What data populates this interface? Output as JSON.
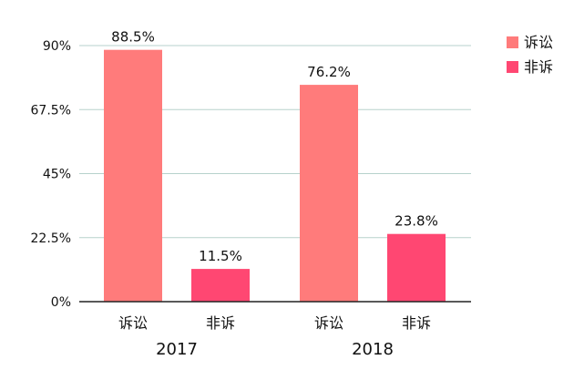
{
  "chart_data": {
    "type": "bar",
    "groups": [
      "2017",
      "2018"
    ],
    "categories": [
      "诉讼",
      "非诉"
    ],
    "series": [
      {
        "name": "诉讼",
        "values": [
          88.5,
          76.2
        ],
        "color": "#FF7B7B"
      },
      {
        "name": "非诉",
        "values": [
          11.5,
          23.8
        ],
        "color": "#FF4772"
      }
    ],
    "data_labels": {
      "2017": [
        "88.5%",
        "11.5%"
      ],
      "2018": [
        "76.2%",
        "23.8%"
      ]
    },
    "y_ticks": [
      "0%",
      "22.5%",
      "45%",
      "67.5%",
      "90%"
    ],
    "ylim": [
      0,
      90
    ],
    "grid": true,
    "legend": {
      "position": "top-right",
      "entries": [
        "诉讼",
        "非诉"
      ]
    },
    "gridline_color": "#B7D2CC",
    "axis_color": "#222222"
  }
}
